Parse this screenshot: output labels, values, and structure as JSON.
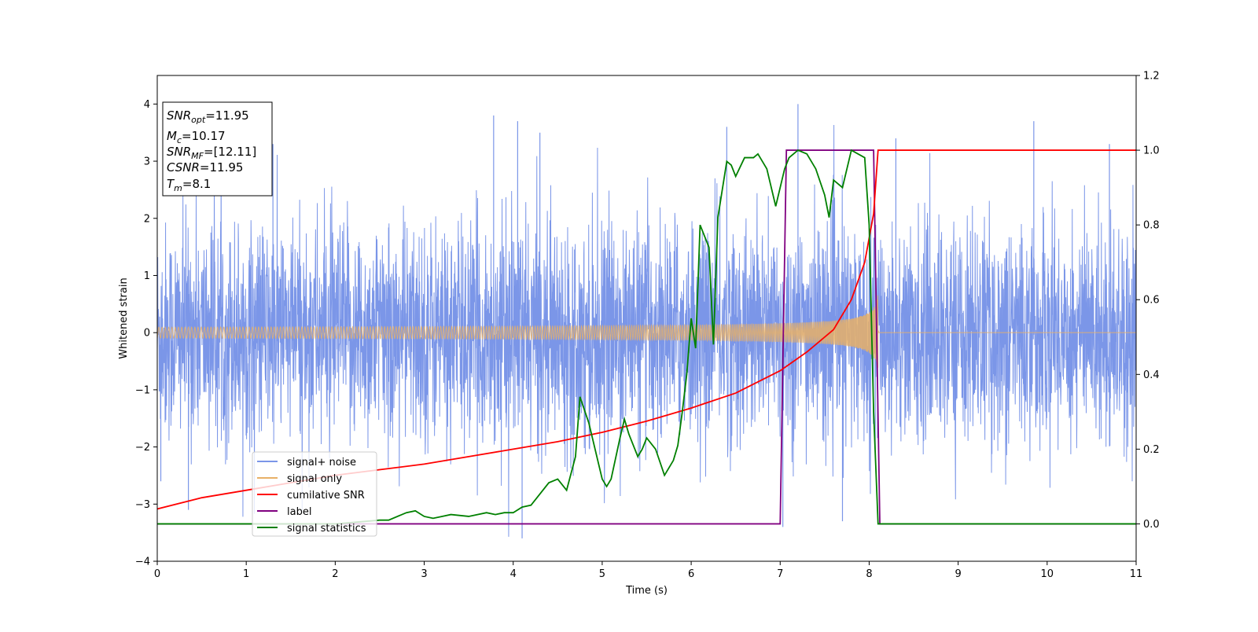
{
  "chart_data": {
    "type": "line",
    "xlabel": "Time (s)",
    "ylabel": "Whitened strain",
    "xlim": [
      0,
      11
    ],
    "ylim_left": [
      -4,
      4.5
    ],
    "ylim_right": [
      -0.1,
      1.2
    ],
    "x_ticks": [
      0,
      1,
      2,
      3,
      4,
      5,
      6,
      7,
      8,
      9,
      10,
      11
    ],
    "y_ticks_left": [
      -4,
      -3,
      -2,
      -1,
      0,
      1,
      2,
      3,
      4
    ],
    "y_ticks_right": [
      0.0,
      0.2,
      0.4,
      0.6,
      0.8,
      1.0,
      1.2
    ],
    "grid": false,
    "legend_position": "lower-left",
    "annotation": {
      "lines": [
        {
          "base": "SNR",
          "sub": "opt",
          "value": "=11.95"
        },
        {
          "base": "M",
          "sub": "c",
          "value": "=10.17"
        },
        {
          "base": "SNR",
          "sub": "MF",
          "value": "=[12.11]"
        },
        {
          "base": "CSNR",
          "sub": "",
          "value": "=11.95"
        },
        {
          "base": "T",
          "sub": "m",
          "value": "=8.1"
        }
      ]
    },
    "series": [
      {
        "name": "signal+ noise",
        "axis": "left",
        "color": "#7b96e8",
        "kind": "noise",
        "amplitude_band": [
          -2.0,
          2.2
        ],
        "peaks": [
          [
            0.04,
            -2.6
          ],
          [
            0.35,
            -3.1
          ],
          [
            1.3,
            3.3
          ],
          [
            3.78,
            3.8
          ],
          [
            4.05,
            3.7
          ],
          [
            4.1,
            -3.6
          ],
          [
            4.3,
            3.5
          ],
          [
            6.4,
            3.6
          ],
          [
            7.03,
            -3.4
          ],
          [
            7.2,
            4.0
          ],
          [
            7.7,
            -3.3
          ],
          [
            8.3,
            3.4
          ],
          [
            9.85,
            3.7
          ],
          [
            10.7,
            3.3
          ]
        ]
      },
      {
        "name": "signal only",
        "axis": "left",
        "color": "#e8b067",
        "kind": "chirp",
        "x_range": [
          0,
          8.1
        ],
        "amplitude_start": 0.05,
        "amplitude_end": 0.75
      },
      {
        "name": "cumilative SNR",
        "axis": "right",
        "color": "#ff0000",
        "x": [
          0,
          0.5,
          1,
          1.5,
          2,
          2.5,
          3,
          3.5,
          4,
          4.5,
          5,
          5.5,
          6,
          6.5,
          7,
          7.3,
          7.6,
          7.8,
          7.95,
          8.05,
          8.1,
          11
        ],
        "y": [
          0.04,
          0.07,
          0.09,
          0.11,
          0.13,
          0.145,
          0.16,
          0.18,
          0.2,
          0.22,
          0.245,
          0.275,
          0.31,
          0.35,
          0.41,
          0.46,
          0.52,
          0.6,
          0.7,
          0.83,
          1.0,
          1.0
        ]
      },
      {
        "name": "label",
        "axis": "right",
        "color": "#800080",
        "x": [
          0,
          7.0,
          7.07,
          8.05,
          8.12,
          11
        ],
        "y": [
          0,
          0,
          1,
          1,
          0,
          0
        ]
      },
      {
        "name": "signal statistics",
        "axis": "right",
        "color": "#008000",
        "x": [
          0,
          0.5,
          1,
          1.5,
          2,
          2.5,
          2.6,
          2.8,
          2.9,
          3.0,
          3.1,
          3.2,
          3.3,
          3.5,
          3.7,
          3.8,
          3.9,
          4.0,
          4.1,
          4.2,
          4.3,
          4.4,
          4.5,
          4.6,
          4.7,
          4.75,
          4.85,
          5.0,
          5.05,
          5.1,
          5.2,
          5.25,
          5.3,
          5.4,
          5.45,
          5.5,
          5.6,
          5.7,
          5.8,
          5.85,
          5.9,
          5.95,
          6.0,
          6.05,
          6.1,
          6.2,
          6.25,
          6.3,
          6.4,
          6.45,
          6.5,
          6.6,
          6.7,
          6.75,
          6.85,
          6.95,
          7.05,
          7.1,
          7.2,
          7.3,
          7.4,
          7.5,
          7.55,
          7.6,
          7.7,
          7.8,
          7.95,
          8.0,
          8.05,
          8.1,
          8.15,
          9,
          10,
          11
        ],
        "y": [
          0,
          0,
          0,
          0,
          0,
          0.01,
          0.01,
          0.03,
          0.035,
          0.02,
          0.015,
          0.02,
          0.025,
          0.02,
          0.03,
          0.025,
          0.03,
          0.03,
          0.045,
          0.05,
          0.08,
          0.11,
          0.12,
          0.09,
          0.18,
          0.34,
          0.27,
          0.12,
          0.1,
          0.12,
          0.23,
          0.28,
          0.24,
          0.18,
          0.2,
          0.23,
          0.2,
          0.13,
          0.17,
          0.21,
          0.3,
          0.4,
          0.55,
          0.47,
          0.8,
          0.74,
          0.48,
          0.82,
          0.97,
          0.96,
          0.93,
          0.98,
          0.98,
          0.99,
          0.95,
          0.85,
          0.95,
          0.98,
          1.0,
          0.99,
          0.95,
          0.88,
          0.82,
          0.92,
          0.9,
          1.0,
          0.98,
          0.8,
          0.3,
          0.0,
          0.0,
          0.0,
          0.0,
          0.0
        ]
      }
    ]
  }
}
